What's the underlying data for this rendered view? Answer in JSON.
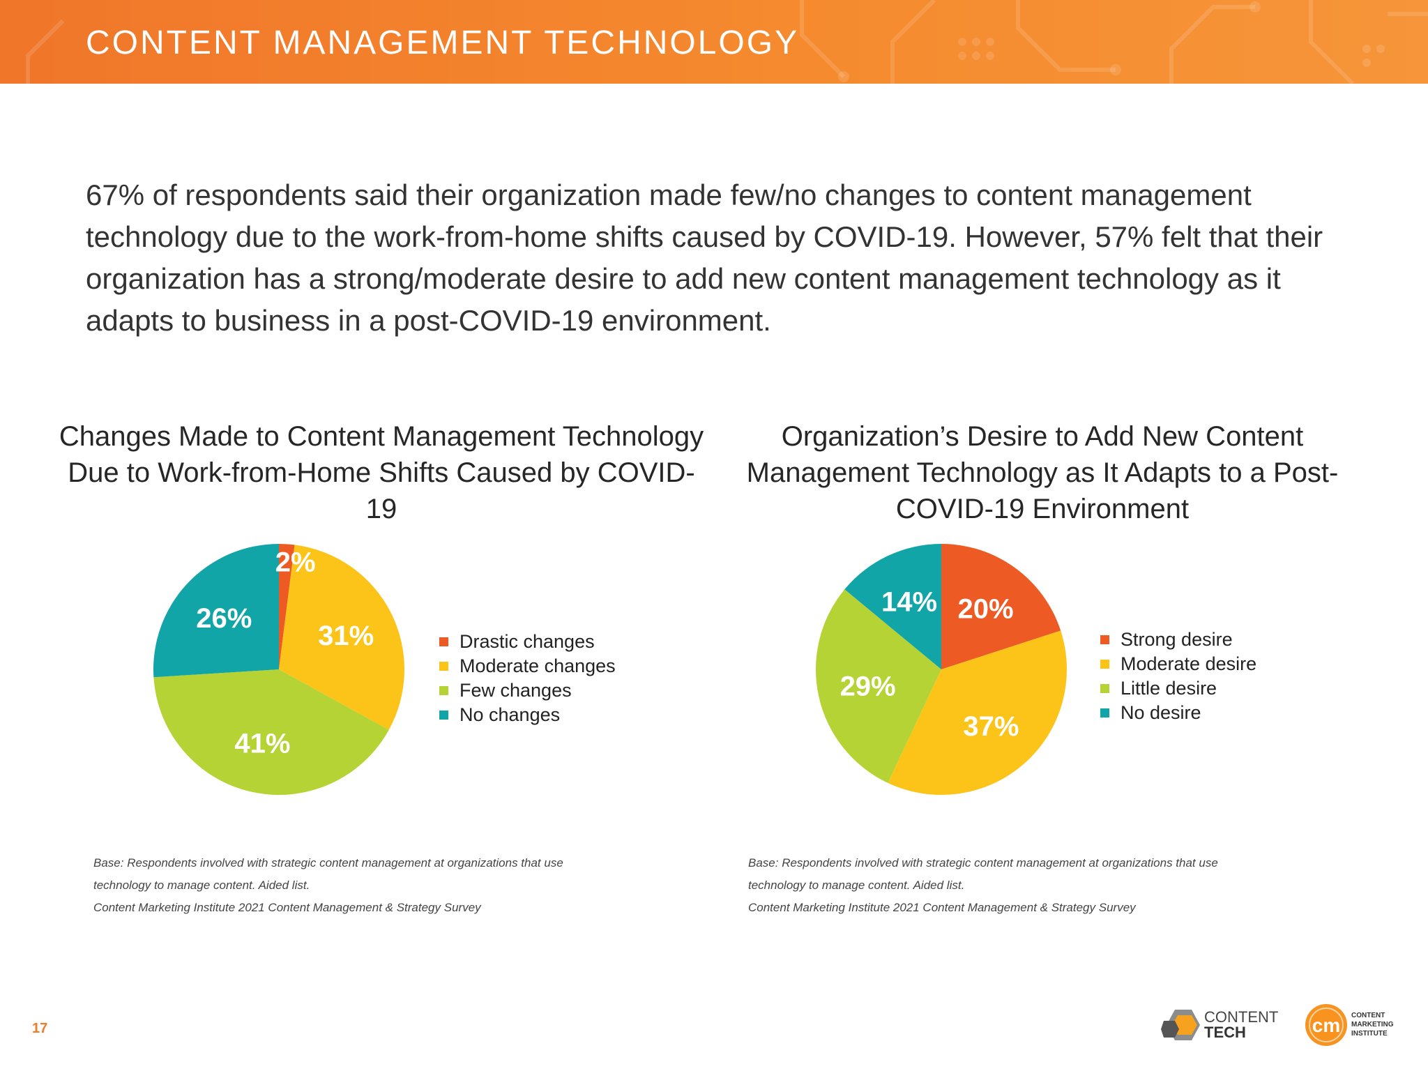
{
  "header": {
    "title": "CONTENT MANAGEMENT TECHNOLOGY"
  },
  "intro": {
    "text": "67% of respondents said their organization made few/no changes to content management technology due to the work-from-home shifts caused by COVID-19. However, 57% felt that their organization has a strong/moderate desire to add new content management technology as it adapts to business in a post-COVID-19 environment."
  },
  "chart_data": [
    {
      "type": "pie",
      "title": "Changes Made to Content Management Technology Due to Work-from-Home Shifts Caused by COVID-19",
      "categories": [
        "Drastic changes",
        "Moderate changes",
        "Few changes",
        "No changes"
      ],
      "values": [
        2,
        31,
        41,
        26
      ],
      "labels": [
        "2%",
        "31%",
        "41%",
        "26%"
      ],
      "colors": [
        "#ee5a24",
        "#fcc419",
        "#b5d334",
        "#12a5a8"
      ],
      "legend_position": "right",
      "source": [
        "Base: Respondents involved with strategic content management at organizations that use",
        "technology to manage content. Aided list.",
        "Content Marketing Institute 2021 Content Management & Strategy Survey"
      ]
    },
    {
      "type": "pie",
      "title": "Organization’s Desire to Add New Content Management Technology as It Adapts to a Post-COVID-19 Environment",
      "categories": [
        "Strong desire",
        "Moderate desire",
        "Little desire",
        "No desire"
      ],
      "values": [
        20,
        37,
        29,
        14
      ],
      "labels": [
        "20%",
        "37%",
        "29%",
        "14%"
      ],
      "colors": [
        "#ee5a24",
        "#fcc419",
        "#b5d334",
        "#12a5a8"
      ],
      "legend_position": "right",
      "source": [
        "Base: Respondents involved with strategic content management at organizations that use",
        " technology to manage content. Aided list.",
        "Content Marketing Institute 2021 Content Management & Strategy Survey"
      ]
    }
  ],
  "footer": {
    "page_number": "17",
    "logo_contenttech": [
      "CONTENT",
      "TECH"
    ],
    "logo_cmi_mark": "cm",
    "logo_cmi": [
      "CONTENT",
      "MARKETING",
      "INSTITUTE"
    ]
  }
}
